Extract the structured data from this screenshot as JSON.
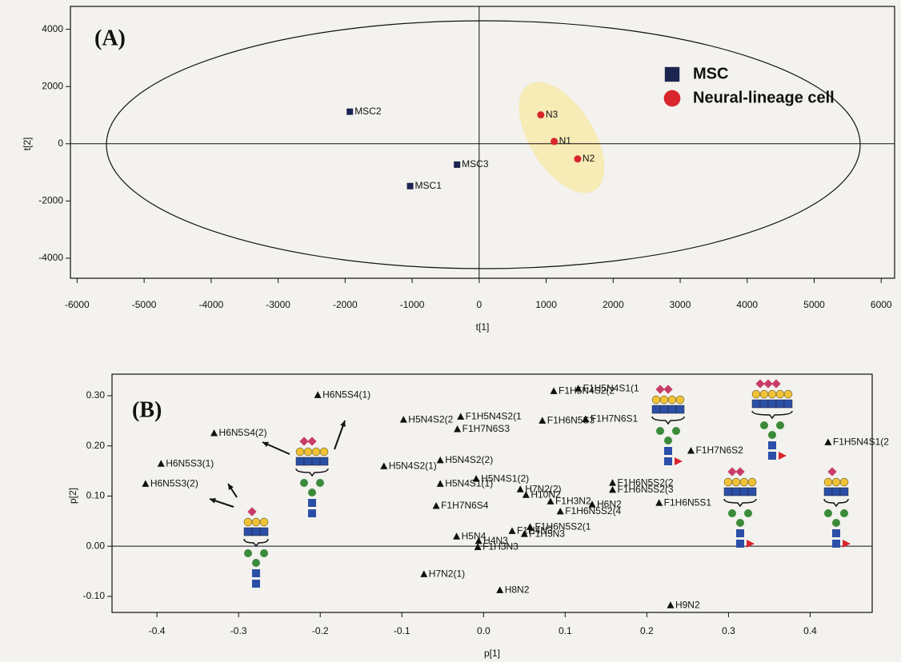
{
  "chart_data": [
    {
      "type": "scatter",
      "title": "(A)",
      "xlabel": "t[1]",
      "ylabel": "t[2]",
      "xlim": [
        -6100,
        6200
      ],
      "ylim": [
        -4700,
        4800
      ],
      "xticks": [
        -6000,
        -5000,
        -4000,
        -3000,
        -2000,
        -1000,
        0,
        1000,
        2000,
        3000,
        4000,
        5000,
        6000
      ],
      "yticks": [
        -4000,
        -2000,
        0,
        2000,
        4000
      ],
      "series": [
        {
          "name": "MSC",
          "color": "#1c2550",
          "label_color": "#3b4f8f",
          "marker": "square",
          "labels": [
            "MSC2",
            "MSC3",
            "MSC1"
          ],
          "x": [
            -1930,
            -330,
            -1030
          ],
          "y": [
            1120,
            -730,
            -1480
          ]
        },
        {
          "name": "Neural-lineage cell",
          "color": "#d8262c",
          "label_color": "#d8262c",
          "marker": "circle",
          "labels": [
            "N3",
            "N1",
            "N2"
          ],
          "x": [
            920,
            1120,
            1470
          ],
          "y": [
            1010,
            80,
            -530
          ]
        }
      ]
    },
    {
      "type": "scatter",
      "title": "(B)",
      "xlabel": "p[1]",
      "ylabel": "p[2]",
      "xlim": [
        -0.455,
        0.476
      ],
      "ylim": [
        -0.132,
        0.343
      ],
      "xticks": [
        -0.4,
        -0.3,
        -0.2,
        -0.1,
        {
          "value": 0,
          "label": "0.0"
        },
        0.1,
        0.2,
        0.3,
        0.4
      ],
      "yticks": [
        {
          "value": -0.1,
          "label": "-0.10"
        },
        {
          "value": 0,
          "label": "0.00"
        },
        {
          "value": 0.1,
          "label": "0.10"
        },
        {
          "value": 0.2,
          "label": "0.20"
        },
        {
          "value": 0.3,
          "label": "0.30"
        }
      ],
      "series": [
        {
          "color": "#111111",
          "label_color": "#111111",
          "marker": "triangle",
          "labels": [
            "H6N5S4(1)",
            "H6N5S4(2)",
            "H6N5S3(1)",
            "H6N5S3(2)",
            "H5N4S2(2",
            "F1H5N4S2(1",
            "F1H7N6S3",
            "H5N4S2(1)",
            "H5N4S2(2)",
            "H5N4S1(2)",
            "H5N4S1(1)",
            "H7N2(2)",
            "H10N2",
            "F1H7N6S4",
            "F1H3N2",
            "F1H6N5S2(2",
            "F1H6N5S2(3",
            "H6N2",
            "F1H6N5S2(4",
            "F1H6N5S1",
            "F1H7N6S2",
            "F1H5N4S1(2",
            "F1H5N4S1(1",
            "F1H5N4S2(2",
            "F1H6N5S3",
            "F1H7N6S1",
            "F1H6N5S2(1",
            "F1H4N3",
            "F1H5N3",
            "H5N4",
            "H4N3",
            "F1H3N3",
            "H7N2(1)",
            "H8N2",
            "H9N2"
          ],
          "x": [
            -0.203,
            -0.33,
            -0.395,
            -0.414,
            -0.098,
            -0.028,
            -0.032,
            -0.122,
            -0.053,
            -0.009,
            -0.053,
            0.045,
            0.052,
            -0.058,
            0.082,
            0.158,
            0.158,
            0.133,
            0.094,
            0.215,
            0.254,
            0.422,
            0.116,
            0.086,
            0.072,
            0.125,
            0.057,
            0.035,
            0.05,
            -0.033,
            -0.006,
            -0.007,
            -0.073,
            0.02,
            0.229
          ],
          "y": [
            0.301,
            0.225,
            0.164,
            0.124,
            0.252,
            0.258,
            0.233,
            0.159,
            0.171,
            0.134,
            0.124,
            0.113,
            0.102,
            0.08,
            0.089,
            0.126,
            0.112,
            0.083,
            0.069,
            0.086,
            0.19,
            0.207,
            0.314,
            0.309,
            0.25,
            0.253,
            0.038,
            0.03,
            0.024,
            0.019,
            0.01,
            -0.002,
            -0.056,
            -0.088,
            -0.118
          ]
        }
      ]
    }
  ]
}
